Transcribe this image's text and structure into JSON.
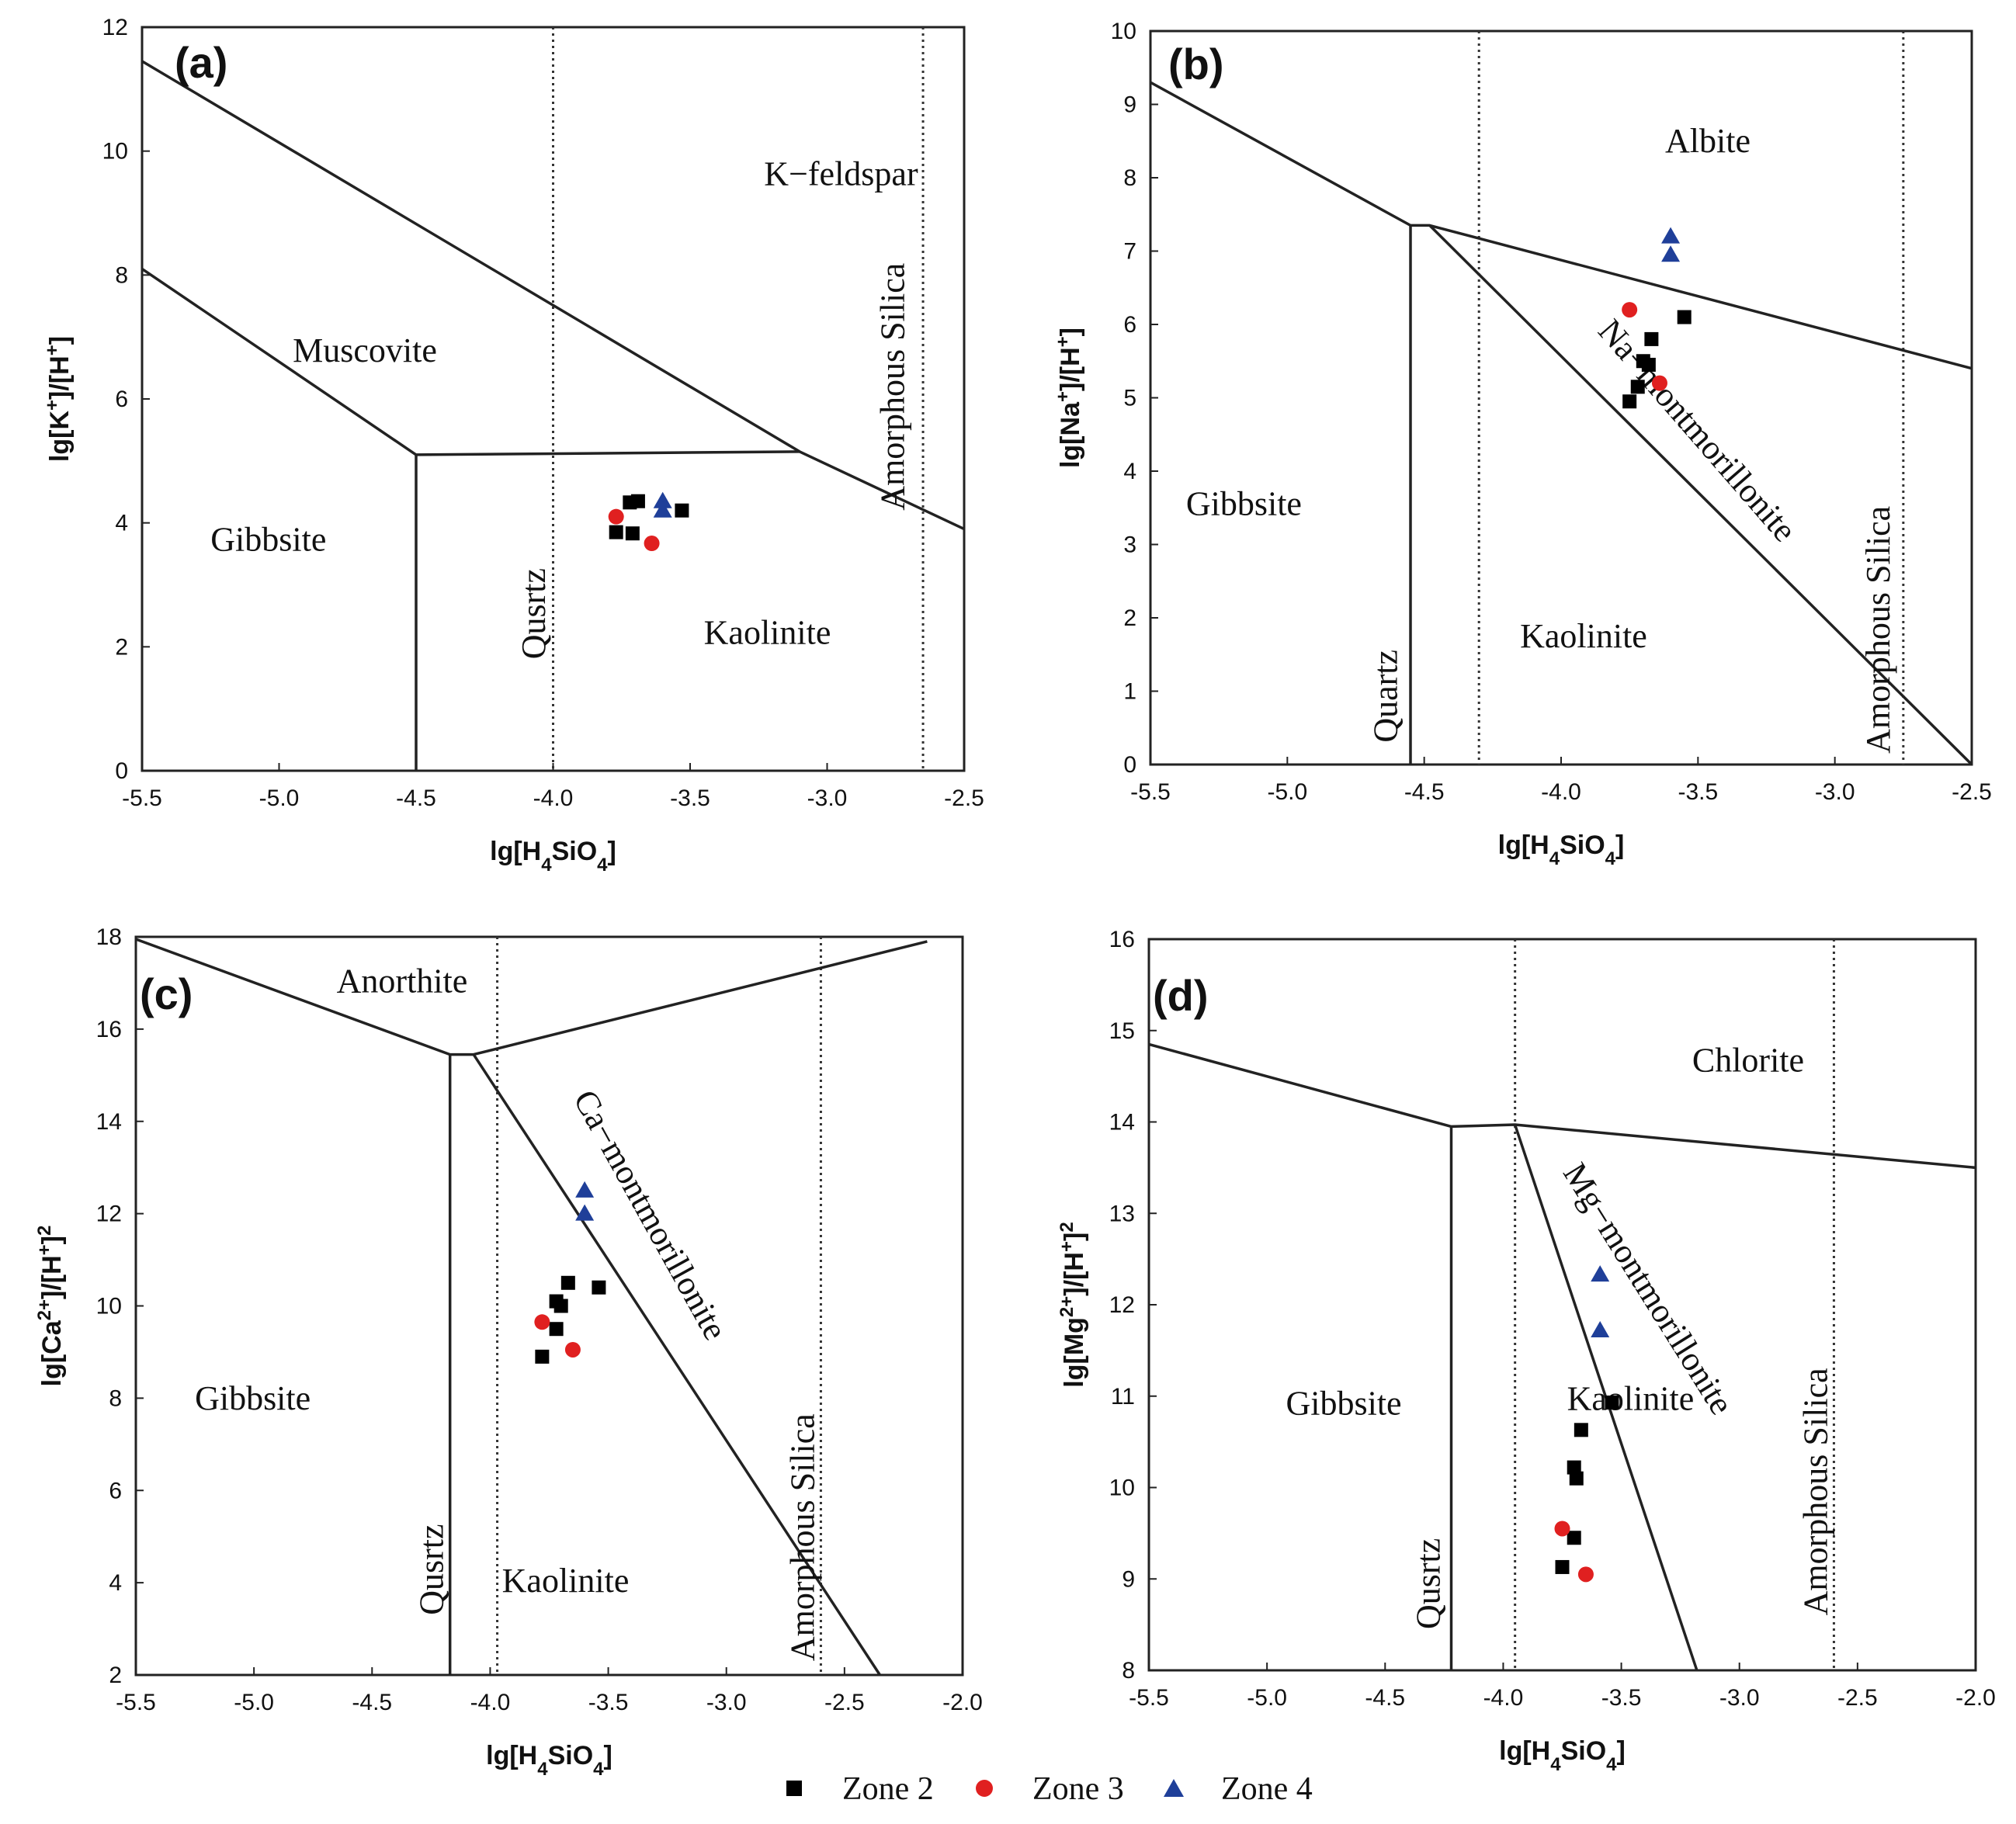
{
  "legend": [
    {
      "label": "Zone 2",
      "marker": "square",
      "color": "#000000"
    },
    {
      "label": "Zone 3",
      "marker": "circle",
      "color": "#e02020"
    },
    {
      "label": "Zone 4",
      "marker": "triangle",
      "color": "#1f3f99"
    }
  ],
  "chart_data": [
    {
      "type": "scatter",
      "panel": "(a)",
      "xlabel": "lg[H4SiO4]",
      "ylabel": "lg[K+]/[H+]",
      "xlim": [
        -5.5,
        -2.5
      ],
      "ylim": [
        0,
        12
      ],
      "xticks": [
        -5.5,
        -5.0,
        -4.5,
        -4.0,
        -3.5,
        -3.0,
        -2.5
      ],
      "xtick_labels": [
        "-5.5",
        "-5.0",
        "-4.5",
        "-4.0",
        "-3.5",
        "-3.0",
        "-2.5"
      ],
      "yticks": [
        0,
        2,
        4,
        6,
        8,
        10,
        12
      ],
      "ytick_labels": [
        "0",
        "2",
        "4",
        "6",
        "8",
        "10",
        "12"
      ],
      "phase_lines": [
        [
          [
            -5.5,
            11.45
          ],
          [
            -3.1,
            5.15
          ],
          [
            -2.5,
            3.9
          ]
        ],
        [
          [
            -5.5,
            8.1
          ],
          [
            -4.5,
            5.1
          ],
          [
            -3.1,
            5.15
          ]
        ],
        [
          [
            -4.5,
            5.1
          ],
          [
            -4.5,
            0
          ]
        ]
      ],
      "dotted_lines": [
        -4.0,
        -2.65
      ],
      "regions": [
        {
          "text": "K−feldspar",
          "x": -3.23,
          "y": 9.45,
          "rotate": 0
        },
        {
          "text": "Muscovite",
          "x": -4.95,
          "y": 6.6,
          "rotate": 0
        },
        {
          "text": "Gibbsite",
          "x": -5.25,
          "y": 3.55,
          "rotate": 0
        },
        {
          "text": "Kaolinite",
          "x": -3.45,
          "y": 2.05,
          "rotate": 0
        },
        {
          "text": "Qusrtz",
          "x": -4.03,
          "y": 1.8,
          "rotate": -90
        },
        {
          "text": "Amorphous Silica",
          "x": -2.72,
          "y": 4.2,
          "rotate": -90
        }
      ],
      "series": [
        {
          "name": "Zone 2",
          "points": [
            [
              -3.69,
              4.35
            ],
            [
              -3.72,
              4.33
            ],
            [
              -3.77,
              3.85
            ],
            [
              -3.71,
              3.83
            ],
            [
              -3.53,
              4.2
            ]
          ]
        },
        {
          "name": "Zone 3",
          "points": [
            [
              -3.77,
              4.1
            ],
            [
              -3.64,
              3.67
            ]
          ]
        },
        {
          "name": "Zone 4",
          "points": [
            [
              -3.6,
              4.35
            ],
            [
              -3.6,
              4.2
            ]
          ]
        }
      ]
    },
    {
      "type": "scatter",
      "panel": "(b)",
      "xlabel": "lg[H4SiO4]",
      "ylabel": "lg[Na+]/[H+]",
      "xlim": [
        -5.5,
        -2.5
      ],
      "ylim": [
        0,
        10
      ],
      "xticks": [
        -5.5,
        -5.0,
        -4.5,
        -4.0,
        -3.5,
        -3.0,
        -2.5
      ],
      "xtick_labels": [
        "-5.5",
        "-5.0",
        "-4.5",
        "-4.0",
        "-3.5",
        "-3.0",
        "-2.5"
      ],
      "yticks": [
        0,
        1,
        2,
        3,
        4,
        5,
        6,
        7,
        8,
        9,
        10
      ],
      "ytick_labels": [
        "0",
        "1",
        "2",
        "3",
        "4",
        "5",
        "6",
        "7",
        "8",
        "9",
        "10"
      ],
      "phase_lines": [
        [
          [
            -5.5,
            9.3
          ],
          [
            -4.55,
            7.35
          ],
          [
            -4.48,
            7.35
          ],
          [
            -2.5,
            5.4
          ]
        ],
        [
          [
            -4.55,
            7.35
          ],
          [
            -4.55,
            0
          ]
        ],
        [
          [
            -4.48,
            7.35
          ],
          [
            -2.5,
            0
          ]
        ]
      ],
      "dotted_lines": [
        -4.3,
        -2.75
      ],
      "regions": [
        {
          "text": "Albite",
          "x": -3.62,
          "y": 8.35,
          "rotate": 0
        },
        {
          "text": "Gibbsite",
          "x": -5.37,
          "y": 3.4,
          "rotate": 0
        },
        {
          "text": "Kaolinite",
          "x": -4.15,
          "y": 1.6,
          "rotate": 0
        },
        {
          "text": "Na−montmorillonite",
          "x": -3.87,
          "y": 5.9,
          "rotate": 49
        },
        {
          "text": "Quartz",
          "x": -4.6,
          "y": 0.3,
          "rotate": -90
        },
        {
          "text": "Amorphous Silica",
          "x": -2.8,
          "y": 0.15,
          "rotate": -90
        }
      ],
      "series": [
        {
          "name": "Zone 2",
          "points": [
            [
              -3.55,
              6.1
            ],
            [
              -3.67,
              5.8
            ],
            [
              -3.7,
              5.5
            ],
            [
              -3.68,
              5.45
            ],
            [
              -3.72,
              5.15
            ],
            [
              -3.75,
              4.95
            ]
          ]
        },
        {
          "name": "Zone 3",
          "points": [
            [
              -3.75,
              6.2
            ],
            [
              -3.64,
              5.2
            ]
          ]
        },
        {
          "name": "Zone 4",
          "points": [
            [
              -3.6,
              7.2
            ],
            [
              -3.6,
              6.95
            ]
          ]
        }
      ]
    },
    {
      "type": "scatter",
      "panel": "(c)",
      "xlabel": "lg[H4SiO4]",
      "ylabel": "lg[Ca2+]/[H+]2",
      "xlim": [
        -5.5,
        -2.0
      ],
      "ylim": [
        2,
        18
      ],
      "xticks": [
        -5.5,
        -5.0,
        -4.5,
        -4.0,
        -3.5,
        -3.0,
        -2.5,
        -2.0
      ],
      "xtick_labels": [
        "-5.5",
        "-5.0",
        "-4.5",
        "-4.0",
        "-3.5",
        "-3.0",
        "-2.5",
        "-2.0"
      ],
      "yticks": [
        2,
        4,
        6,
        8,
        10,
        12,
        14,
        16,
        18
      ],
      "ytick_labels": [
        "2",
        "4",
        "6",
        "8",
        "10",
        "12",
        "14",
        "16",
        "18"
      ],
      "phase_lines": [
        [
          [
            -5.5,
            17.95
          ],
          [
            -4.17,
            15.45
          ],
          [
            -4.07,
            15.45
          ],
          [
            -2.15,
            17.9
          ]
        ],
        [
          [
            -4.17,
            15.45
          ],
          [
            -4.17,
            2
          ]
        ],
        [
          [
            -4.07,
            15.45
          ],
          [
            -2.35,
            2
          ]
        ]
      ],
      "dotted_lines": [
        -3.97,
        -2.6
      ],
      "regions": [
        {
          "text": "Anorthite",
          "x": -4.65,
          "y": 16.8,
          "rotate": 0
        },
        {
          "text": "Gibbsite",
          "x": -5.25,
          "y": 7.75,
          "rotate": 0
        },
        {
          "text": "Kaolinite",
          "x": -3.95,
          "y": 3.8,
          "rotate": 0
        },
        {
          "text": "Ca−montmorillonite",
          "x": -3.65,
          "y": 14.5,
          "rotate": 61
        },
        {
          "text": "Qusrtz",
          "x": -4.2,
          "y": 3.3,
          "rotate": -90
        },
        {
          "text": "Amorphous Silica",
          "x": -2.63,
          "y": 2.3,
          "rotate": -90
        }
      ],
      "series": [
        {
          "name": "Zone 2",
          "points": [
            [
              -3.67,
              10.5
            ],
            [
              -3.54,
              10.4
            ],
            [
              -3.72,
              10.1
            ],
            [
              -3.7,
              10.0
            ],
            [
              -3.72,
              9.5
            ],
            [
              -3.78,
              8.9
            ]
          ]
        },
        {
          "name": "Zone 3",
          "points": [
            [
              -3.78,
              9.65
            ],
            [
              -3.65,
              9.05
            ]
          ]
        },
        {
          "name": "Zone 4",
          "points": [
            [
              -3.6,
              12.5
            ],
            [
              -3.6,
              12.0
            ]
          ]
        }
      ]
    },
    {
      "type": "scatter",
      "panel": "(d)",
      "xlabel": "lg[H4SiO4]",
      "ylabel": "lg[Mg2+]/[H+]2",
      "xlim": [
        -5.5,
        -2.0
      ],
      "ylim": [
        8,
        16
      ],
      "xticks": [
        -5.5,
        -5.0,
        -4.5,
        -4.0,
        -3.5,
        -3.0,
        -2.5,
        -2.0
      ],
      "xtick_labels": [
        "-5.5",
        "-5.0",
        "-4.5",
        "-4.0",
        "-3.5",
        "-3.0",
        "-2.5",
        "-2.0"
      ],
      "yticks": [
        8,
        9,
        10,
        11,
        12,
        13,
        14,
        15,
        16
      ],
      "ytick_labels": [
        "8",
        "9",
        "10",
        "11",
        "12",
        "13",
        "14",
        "15",
        "16"
      ],
      "phase_lines": [
        [
          [
            -5.5,
            14.85
          ],
          [
            -4.22,
            13.95
          ],
          [
            -3.95,
            13.97
          ],
          [
            -2.0,
            13.5
          ]
        ],
        [
          [
            -4.22,
            13.95
          ],
          [
            -4.22,
            8
          ]
        ],
        [
          [
            -3.95,
            13.97
          ],
          [
            -3.18,
            8
          ]
        ]
      ],
      "dotted_lines": [
        -3.95,
        -2.6
      ],
      "regions": [
        {
          "text": "Chlorite",
          "x": -3.2,
          "y": 14.55,
          "rotate": 0
        },
        {
          "text": "Gibbsite",
          "x": -4.92,
          "y": 10.8,
          "rotate": 0
        },
        {
          "text": "Kaolinite",
          "x": -3.73,
          "y": 10.85,
          "rotate": 0
        },
        {
          "text": "Mg−montmorillonite",
          "x": -3.75,
          "y": 13.45,
          "rotate": 58
        },
        {
          "text": "Qusrtz",
          "x": -4.27,
          "y": 8.45,
          "rotate": -90
        },
        {
          "text": "Amorphous Silica",
          "x": -2.63,
          "y": 8.6,
          "rotate": -90
        }
      ],
      "series": [
        {
          "name": "Zone 2",
          "points": [
            [
              -3.54,
              10.93
            ],
            [
              -3.67,
              10.63
            ],
            [
              -3.7,
              10.22
            ],
            [
              -3.69,
              10.1
            ],
            [
              -3.7,
              9.45
            ],
            [
              -3.75,
              9.13
            ]
          ]
        },
        {
          "name": "Zone 3",
          "points": [
            [
              -3.75,
              9.55
            ],
            [
              -3.65,
              9.05
            ]
          ]
        },
        {
          "name": "Zone 4",
          "points": [
            [
              -3.59,
              12.33
            ],
            [
              -3.59,
              11.72
            ]
          ]
        }
      ]
    }
  ]
}
